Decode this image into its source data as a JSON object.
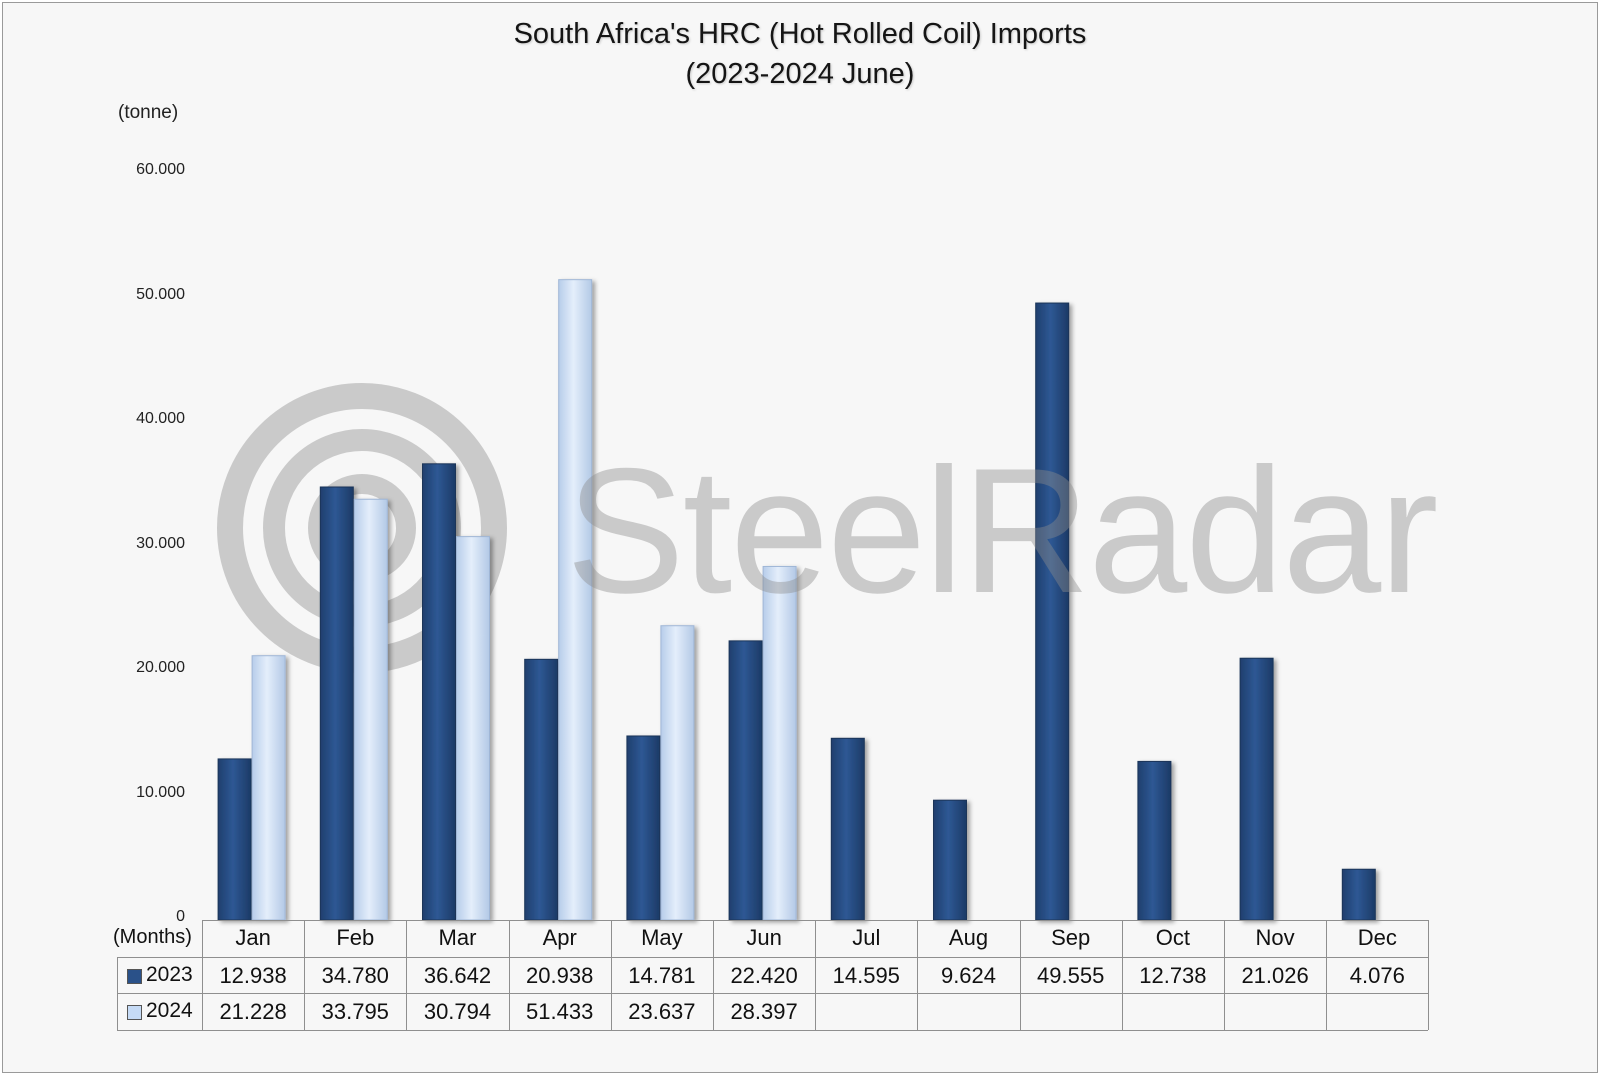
{
  "chart_data": {
    "type": "bar",
    "title": "South Africa's HRC (Hot Rolled Coil) Imports",
    "subtitle": "(2023-2024 June)",
    "ylabel": "(tonne)",
    "x_axis_label": "(Months)",
    "categories": [
      "Jan",
      "Feb",
      "Mar",
      "Apr",
      "May",
      "Jun",
      "Jul",
      "Aug",
      "Sep",
      "Oct",
      "Nov",
      "Dec"
    ],
    "yticks": [
      "0",
      "10.000",
      "20.000",
      "30.000",
      "40.000",
      "50.000",
      "60.000"
    ],
    "ytick_values": [
      0,
      10000,
      20000,
      30000,
      40000,
      50000,
      60000
    ],
    "ylim": [
      0,
      60000
    ],
    "grid": false,
    "legend": "data-table",
    "series": [
      {
        "name": "2023",
        "color": "#2a5189",
        "values": [
          12938,
          34780,
          36642,
          20938,
          14781,
          22420,
          14595,
          9624,
          49555,
          12738,
          21026,
          4076
        ],
        "labels": [
          "12.938",
          "34.780",
          "36.642",
          "20.938",
          "14.781",
          "22.420",
          "14.595",
          "9.624",
          "49.555",
          "12.738",
          "21.026",
          "4.076"
        ]
      },
      {
        "name": "2024",
        "color": "#c6dbf6",
        "values": [
          21228,
          33795,
          30794,
          51433,
          23637,
          28397,
          null,
          null,
          null,
          null,
          null,
          null
        ],
        "labels": [
          "21.228",
          "33.795",
          "30.794",
          "51.433",
          "23.637",
          "28.397",
          "",
          "",
          "",
          "",
          "",
          ""
        ]
      }
    ]
  },
  "watermark": {
    "text": "SteelRadar"
  }
}
